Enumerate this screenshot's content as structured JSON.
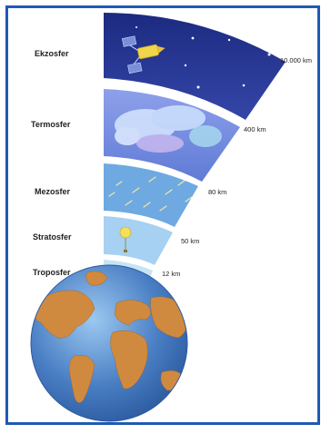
{
  "layers": [
    {
      "id": "exosphere",
      "name": "Ekzosfer",
      "altitude": "10.000 km"
    },
    {
      "id": "thermosphere",
      "name": "Termosfer",
      "altitude": "400 km"
    },
    {
      "id": "mesosphere",
      "name": "Mezosfer",
      "altitude": "80 km"
    },
    {
      "id": "stratosphere",
      "name": "Stratosfer",
      "altitude": "50 km"
    },
    {
      "id": "troposphere",
      "name": "Troposfer",
      "altitude": "12 km"
    }
  ],
  "colors": {
    "frame": "#1e5ab4",
    "exosphere": "#2b3c9a",
    "thermosphere": "#6f86dc",
    "mesosphere": "#6ea9e2",
    "stratosphere": "#a6d1f2",
    "troposphere": "#c7e4f7",
    "ocean": "#4a7fc4",
    "land": "#d08a40"
  },
  "icons": {
    "exosphere": "satellite-icon",
    "thermosphere": "aurora-icon",
    "mesosphere": "meteor-icon",
    "stratosphere": "weather-balloon-icon",
    "troposphere": "airplane-icon",
    "earth": "globe-icon"
  }
}
